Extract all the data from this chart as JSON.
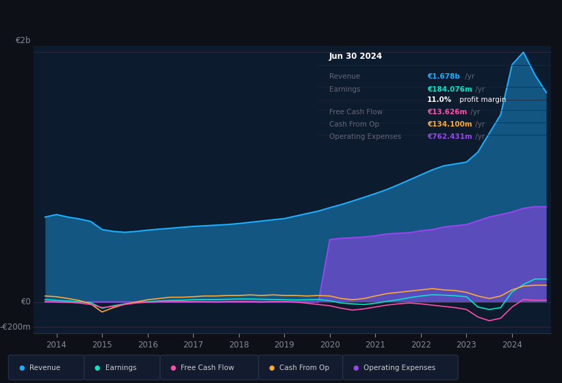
{
  "bg_color": "#0d1117",
  "plot_bg_color": "#0d1b2e",
  "title": "Jun 30 2024",
  "ylabel_top": "€2b",
  "ylabel_zero": "€0",
  "ylabel_neg": "-€200m",
  "xlim": [
    2013.5,
    2024.85
  ],
  "ylim": [
    -250000000,
    2050000000
  ],
  "zero_y": 0,
  "colors": {
    "revenue": "#1ab0ff",
    "earnings": "#00e8c8",
    "free_cash_flow": "#ff4dab",
    "cash_from_op": "#ffaa33",
    "operating_expenses": "#9944ee"
  },
  "legend_labels": [
    "Revenue",
    "Earnings",
    "Free Cash Flow",
    "Cash From Op",
    "Operating Expenses"
  ],
  "info_box": {
    "title": "Jun 30 2024",
    "rows": [
      {
        "label": "Revenue",
        "value": "€1.678b",
        "suffix": " /yr",
        "color": "#1ab0ff"
      },
      {
        "label": "Earnings",
        "value": "€184.076m",
        "suffix": " /yr",
        "color": "#00e8c8"
      },
      {
        "label": "",
        "value": "11.0%",
        "suffix": " profit margin",
        "color": "#ffffff"
      },
      {
        "label": "Free Cash Flow",
        "value": "€13.626m",
        "suffix": " /yr",
        "color": "#ff4dab"
      },
      {
        "label": "Cash From Op",
        "value": "€134.100m",
        "suffix": " /yr",
        "color": "#ffaa33"
      },
      {
        "label": "Operating Expenses",
        "value": "€762.431m",
        "suffix": " /yr",
        "color": "#9944ee"
      }
    ]
  },
  "x_ticks": [
    2014,
    2015,
    2016,
    2017,
    2018,
    2019,
    2020,
    2021,
    2022,
    2023,
    2024
  ],
  "revenue": [
    [
      2013.75,
      680000000
    ],
    [
      2014.0,
      700000000
    ],
    [
      2014.25,
      680000000
    ],
    [
      2014.5,
      665000000
    ],
    [
      2014.75,
      645000000
    ],
    [
      2015.0,
      580000000
    ],
    [
      2015.25,
      565000000
    ],
    [
      2015.5,
      558000000
    ],
    [
      2015.75,
      565000000
    ],
    [
      2016.0,
      575000000
    ],
    [
      2016.25,
      583000000
    ],
    [
      2016.5,
      590000000
    ],
    [
      2016.75,
      598000000
    ],
    [
      2017.0,
      605000000
    ],
    [
      2017.25,
      610000000
    ],
    [
      2017.5,
      615000000
    ],
    [
      2017.75,
      620000000
    ],
    [
      2018.0,
      628000000
    ],
    [
      2018.25,
      638000000
    ],
    [
      2018.5,
      648000000
    ],
    [
      2018.75,
      658000000
    ],
    [
      2019.0,
      668000000
    ],
    [
      2019.25,
      688000000
    ],
    [
      2019.5,
      708000000
    ],
    [
      2019.75,
      728000000
    ],
    [
      2020.0,
      755000000
    ],
    [
      2020.25,
      780000000
    ],
    [
      2020.5,
      808000000
    ],
    [
      2020.75,
      838000000
    ],
    [
      2021.0,
      868000000
    ],
    [
      2021.25,
      900000000
    ],
    [
      2021.5,
      938000000
    ],
    [
      2021.75,
      978000000
    ],
    [
      2022.0,
      1018000000
    ],
    [
      2022.25,
      1058000000
    ],
    [
      2022.5,
      1090000000
    ],
    [
      2022.75,
      1105000000
    ],
    [
      2023.0,
      1120000000
    ],
    [
      2023.25,
      1200000000
    ],
    [
      2023.5,
      1350000000
    ],
    [
      2023.75,
      1500000000
    ],
    [
      2024.0,
      1900000000
    ],
    [
      2024.25,
      2000000000
    ],
    [
      2024.5,
      1820000000
    ],
    [
      2024.75,
      1678000000
    ]
  ],
  "earnings": [
    [
      2013.75,
      20000000
    ],
    [
      2014.0,
      12000000
    ],
    [
      2014.25,
      8000000
    ],
    [
      2014.5,
      2000000
    ],
    [
      2014.75,
      -5000000
    ],
    [
      2015.0,
      -50000000
    ],
    [
      2015.25,
      -30000000
    ],
    [
      2015.5,
      -15000000
    ],
    [
      2015.75,
      -5000000
    ],
    [
      2016.0,
      2000000
    ],
    [
      2016.25,
      8000000
    ],
    [
      2016.5,
      12000000
    ],
    [
      2016.75,
      14000000
    ],
    [
      2017.0,
      18000000
    ],
    [
      2017.25,
      20000000
    ],
    [
      2017.5,
      20000000
    ],
    [
      2017.75,
      22000000
    ],
    [
      2018.0,
      24000000
    ],
    [
      2018.25,
      24000000
    ],
    [
      2018.5,
      22000000
    ],
    [
      2018.75,
      20000000
    ],
    [
      2019.0,
      18000000
    ],
    [
      2019.25,
      16000000
    ],
    [
      2019.5,
      18000000
    ],
    [
      2019.75,
      20000000
    ],
    [
      2020.0,
      10000000
    ],
    [
      2020.25,
      -8000000
    ],
    [
      2020.5,
      -15000000
    ],
    [
      2020.75,
      -20000000
    ],
    [
      2021.0,
      -10000000
    ],
    [
      2021.25,
      5000000
    ],
    [
      2021.5,
      18000000
    ],
    [
      2021.75,
      35000000
    ],
    [
      2022.0,
      48000000
    ],
    [
      2022.25,
      58000000
    ],
    [
      2022.5,
      55000000
    ],
    [
      2022.75,
      50000000
    ],
    [
      2023.0,
      42000000
    ],
    [
      2023.25,
      -40000000
    ],
    [
      2023.5,
      -60000000
    ],
    [
      2023.75,
      -45000000
    ],
    [
      2024.0,
      80000000
    ],
    [
      2024.25,
      140000000
    ],
    [
      2024.5,
      184076000
    ],
    [
      2024.75,
      184076000
    ]
  ],
  "free_cash_flow": [
    [
      2013.75,
      5000000
    ],
    [
      2014.0,
      0
    ],
    [
      2014.25,
      -3000000
    ],
    [
      2014.5,
      -8000000
    ],
    [
      2014.75,
      -20000000
    ],
    [
      2015.0,
      -45000000
    ],
    [
      2015.25,
      -35000000
    ],
    [
      2015.5,
      -20000000
    ],
    [
      2015.75,
      -8000000
    ],
    [
      2016.0,
      -2000000
    ],
    [
      2016.25,
      2000000
    ],
    [
      2016.5,
      3000000
    ],
    [
      2016.75,
      3000000
    ],
    [
      2017.0,
      3000000
    ],
    [
      2017.25,
      2000000
    ],
    [
      2017.5,
      0
    ],
    [
      2017.75,
      3000000
    ],
    [
      2018.0,
      3000000
    ],
    [
      2018.25,
      3000000
    ],
    [
      2018.5,
      0
    ],
    [
      2018.75,
      3000000
    ],
    [
      2019.0,
      3000000
    ],
    [
      2019.25,
      0
    ],
    [
      2019.5,
      -10000000
    ],
    [
      2019.75,
      -20000000
    ],
    [
      2020.0,
      -30000000
    ],
    [
      2020.25,
      -50000000
    ],
    [
      2020.5,
      -65000000
    ],
    [
      2020.75,
      -55000000
    ],
    [
      2021.0,
      -40000000
    ],
    [
      2021.25,
      -25000000
    ],
    [
      2021.5,
      -15000000
    ],
    [
      2021.75,
      -8000000
    ],
    [
      2022.0,
      -15000000
    ],
    [
      2022.25,
      -25000000
    ],
    [
      2022.5,
      -35000000
    ],
    [
      2022.75,
      -45000000
    ],
    [
      2023.0,
      -60000000
    ],
    [
      2023.25,
      -120000000
    ],
    [
      2023.5,
      -150000000
    ],
    [
      2023.75,
      -130000000
    ],
    [
      2024.0,
      -40000000
    ],
    [
      2024.25,
      20000000
    ],
    [
      2024.5,
      13626000
    ],
    [
      2024.75,
      13626000
    ]
  ],
  "cash_from_op": [
    [
      2013.75,
      48000000
    ],
    [
      2014.0,
      42000000
    ],
    [
      2014.25,
      28000000
    ],
    [
      2014.5,
      12000000
    ],
    [
      2014.75,
      -15000000
    ],
    [
      2015.0,
      -80000000
    ],
    [
      2015.25,
      -45000000
    ],
    [
      2015.5,
      -18000000
    ],
    [
      2015.75,
      0
    ],
    [
      2016.0,
      18000000
    ],
    [
      2016.25,
      28000000
    ],
    [
      2016.5,
      38000000
    ],
    [
      2016.75,
      38000000
    ],
    [
      2017.0,
      42000000
    ],
    [
      2017.25,
      48000000
    ],
    [
      2017.5,
      48000000
    ],
    [
      2017.75,
      52000000
    ],
    [
      2018.0,
      52000000
    ],
    [
      2018.25,
      57000000
    ],
    [
      2018.5,
      52000000
    ],
    [
      2018.75,
      57000000
    ],
    [
      2019.0,
      52000000
    ],
    [
      2019.25,
      52000000
    ],
    [
      2019.5,
      48000000
    ],
    [
      2019.75,
      52000000
    ],
    [
      2020.0,
      48000000
    ],
    [
      2020.25,
      28000000
    ],
    [
      2020.5,
      18000000
    ],
    [
      2020.75,
      28000000
    ],
    [
      2021.0,
      48000000
    ],
    [
      2021.25,
      67000000
    ],
    [
      2021.5,
      77000000
    ],
    [
      2021.75,
      87000000
    ],
    [
      2022.0,
      97000000
    ],
    [
      2022.25,
      107000000
    ],
    [
      2022.5,
      97000000
    ],
    [
      2022.75,
      92000000
    ],
    [
      2023.0,
      77000000
    ],
    [
      2023.25,
      48000000
    ],
    [
      2023.5,
      28000000
    ],
    [
      2023.75,
      48000000
    ],
    [
      2024.0,
      97000000
    ],
    [
      2024.25,
      127000000
    ],
    [
      2024.5,
      134100000
    ],
    [
      2024.75,
      134100000
    ]
  ],
  "operating_expenses": [
    [
      2013.75,
      0
    ],
    [
      2014.0,
      0
    ],
    [
      2014.25,
      0
    ],
    [
      2014.5,
      0
    ],
    [
      2014.75,
      0
    ],
    [
      2015.0,
      0
    ],
    [
      2015.25,
      0
    ],
    [
      2015.5,
      0
    ],
    [
      2015.75,
      0
    ],
    [
      2016.0,
      0
    ],
    [
      2016.25,
      0
    ],
    [
      2016.5,
      0
    ],
    [
      2016.75,
      0
    ],
    [
      2017.0,
      0
    ],
    [
      2017.25,
      0
    ],
    [
      2017.5,
      0
    ],
    [
      2017.75,
      0
    ],
    [
      2018.0,
      0
    ],
    [
      2018.25,
      0
    ],
    [
      2018.5,
      0
    ],
    [
      2018.75,
      0
    ],
    [
      2019.0,
      0
    ],
    [
      2019.25,
      0
    ],
    [
      2019.5,
      0
    ],
    [
      2019.75,
      0
    ],
    [
      2020.0,
      500000000
    ],
    [
      2020.25,
      510000000
    ],
    [
      2020.5,
      515000000
    ],
    [
      2020.75,
      520000000
    ],
    [
      2021.0,
      530000000
    ],
    [
      2021.25,
      545000000
    ],
    [
      2021.5,
      550000000
    ],
    [
      2021.75,
      555000000
    ],
    [
      2022.0,
      570000000
    ],
    [
      2022.25,
      580000000
    ],
    [
      2022.5,
      600000000
    ],
    [
      2022.75,
      610000000
    ],
    [
      2023.0,
      620000000
    ],
    [
      2023.25,
      650000000
    ],
    [
      2023.5,
      680000000
    ],
    [
      2023.75,
      700000000
    ],
    [
      2024.0,
      720000000
    ],
    [
      2024.25,
      750000000
    ],
    [
      2024.5,
      762431000
    ],
    [
      2024.75,
      762431000
    ]
  ]
}
